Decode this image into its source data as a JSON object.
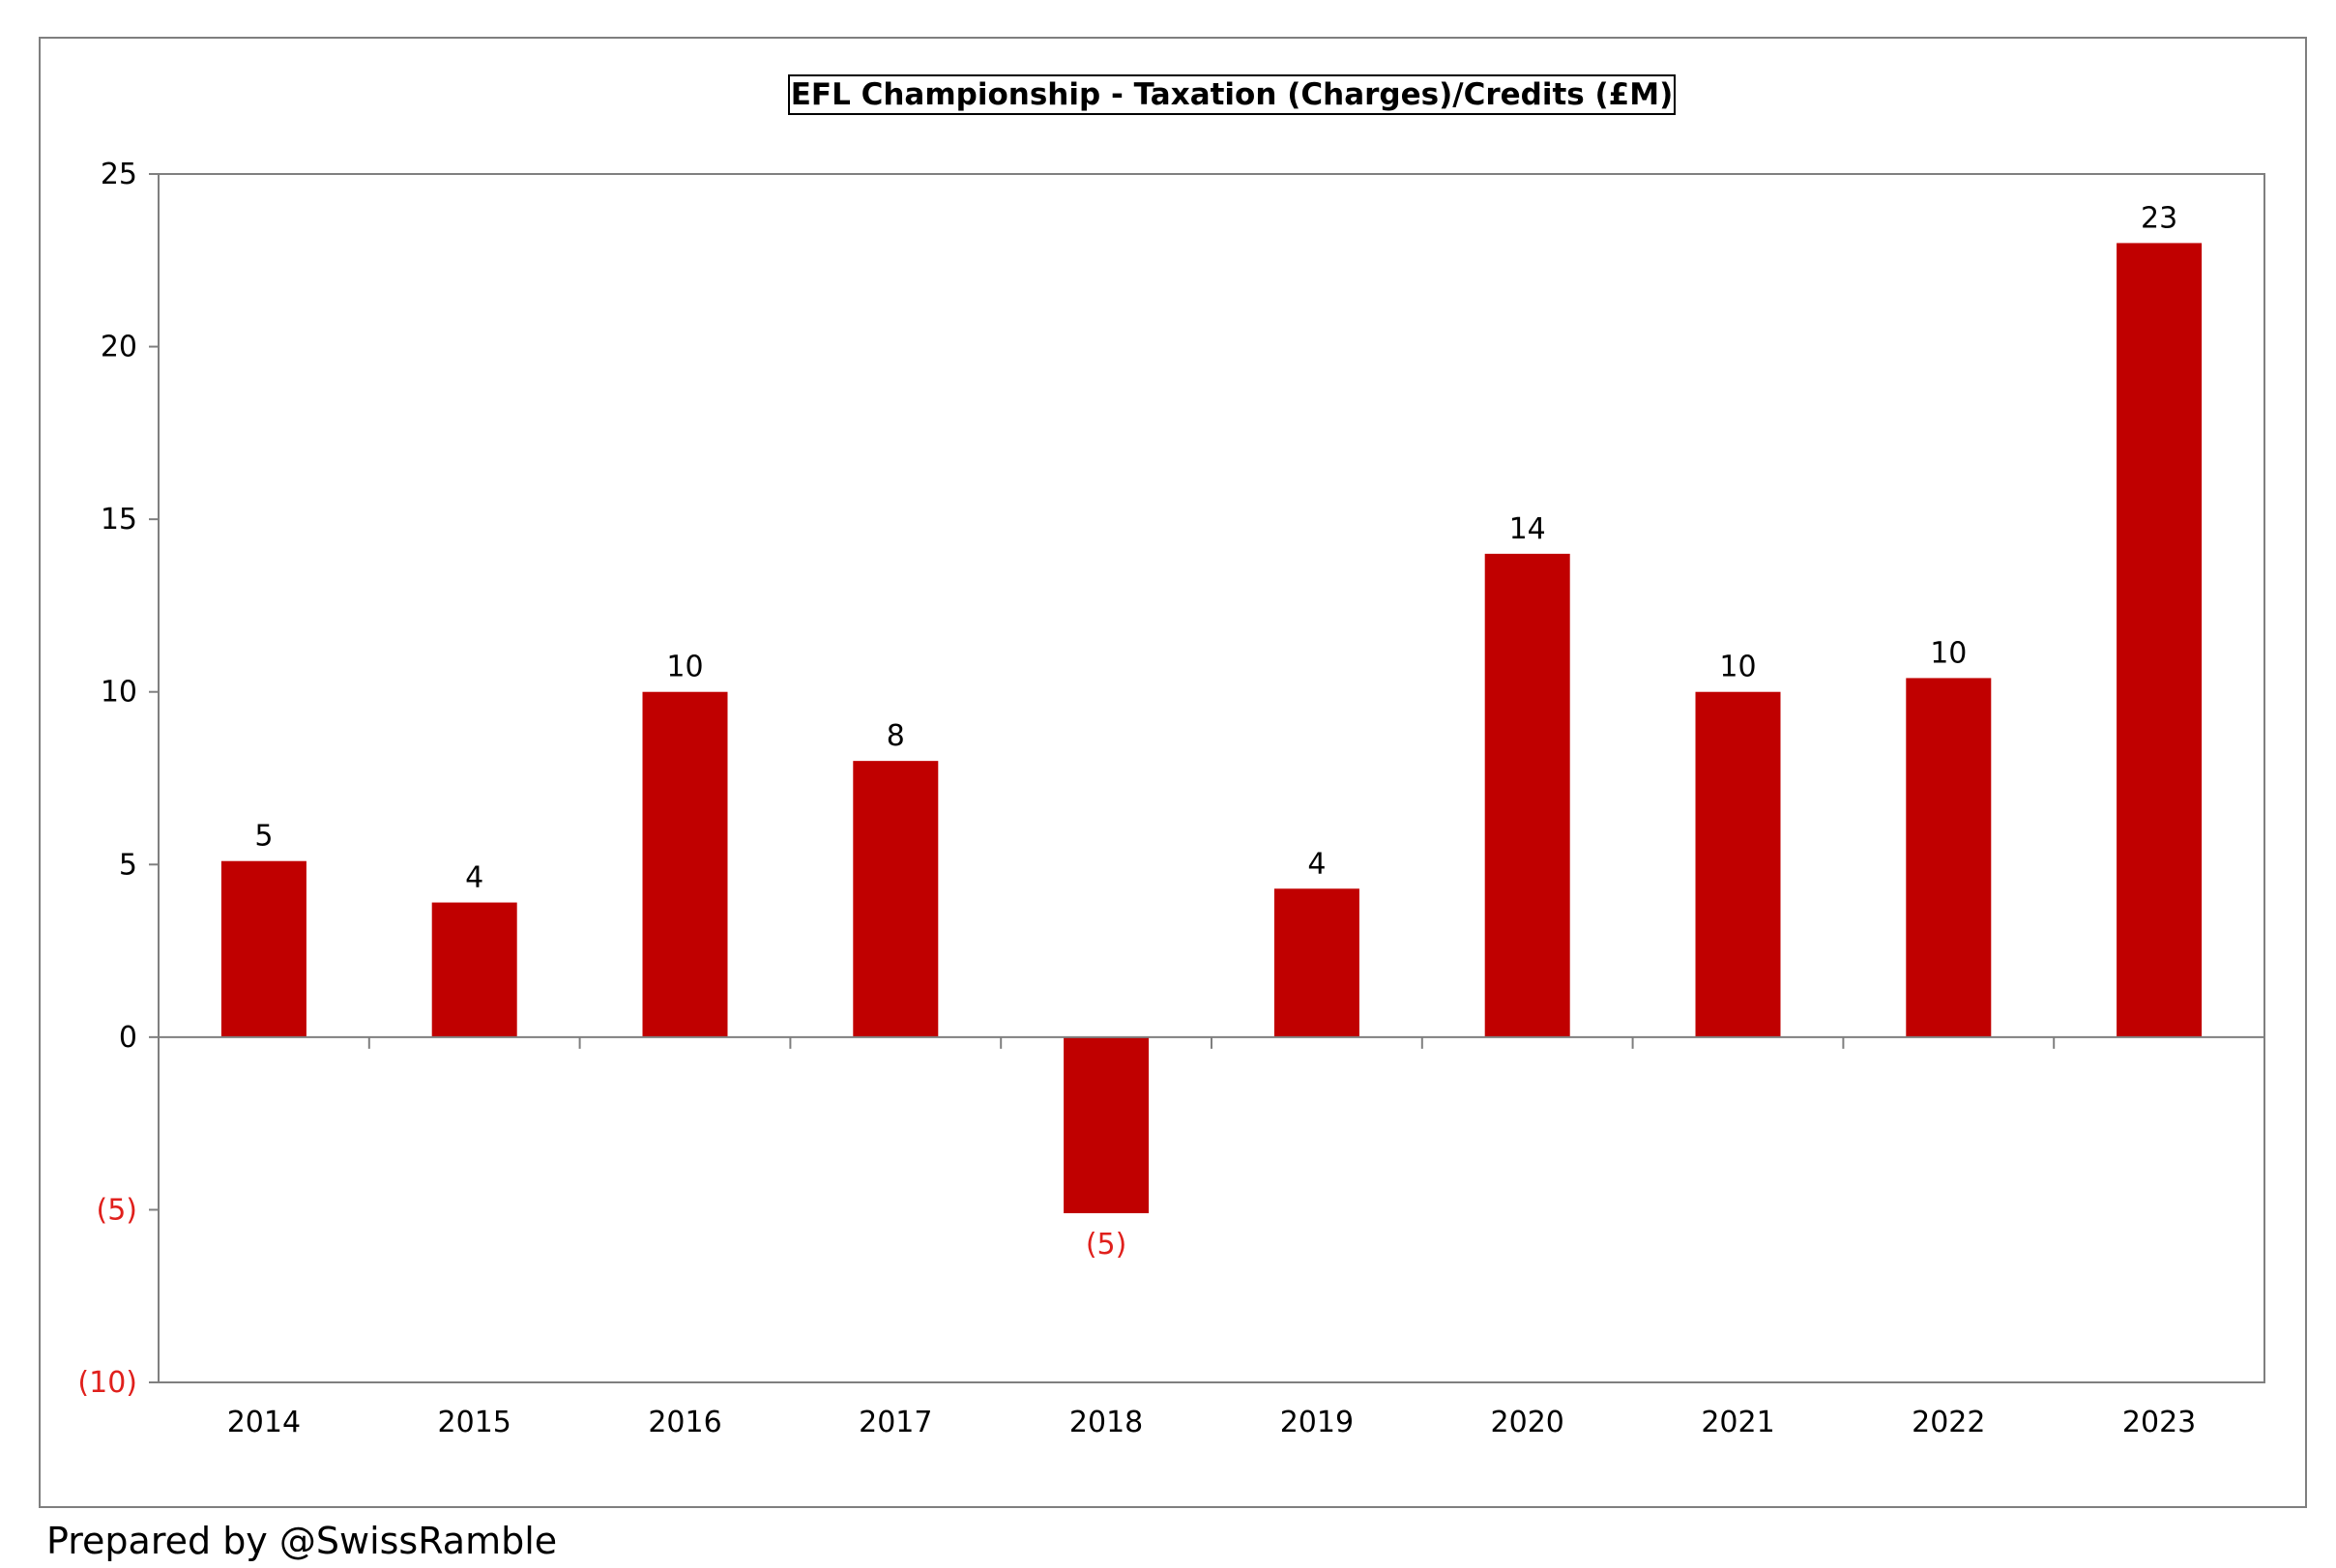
{
  "chart_data": {
    "type": "bar",
    "title": "EFL Championship - Taxation (Charges)/Credits (£M)",
    "categories": [
      "2014",
      "2015",
      "2016",
      "2017",
      "2018",
      "2019",
      "2020",
      "2021",
      "2022",
      "2023"
    ],
    "values": [
      5.1,
      3.9,
      10.0,
      8.0,
      -5.1,
      4.3,
      14.0,
      10.0,
      10.4,
      23.0
    ],
    "data_labels": [
      "5",
      "4",
      "10",
      "8",
      "(5)",
      "4",
      "14",
      "10",
      "10",
      "23"
    ],
    "xlabel": "",
    "ylabel": "",
    "ylim": [
      -10,
      25
    ],
    "yticks": [
      25,
      20,
      15,
      10,
      5,
      0,
      -5,
      -10
    ],
    "ytick_labels": [
      "25",
      "20",
      "15",
      "10",
      "5",
      "0",
      "(5)",
      "(10)"
    ],
    "grid": false,
    "bar_color": "#c00000",
    "negative_label_color": "#e0201c",
    "positive_label_color": "#000000"
  },
  "footer": "Prepared by @SwissRamble"
}
